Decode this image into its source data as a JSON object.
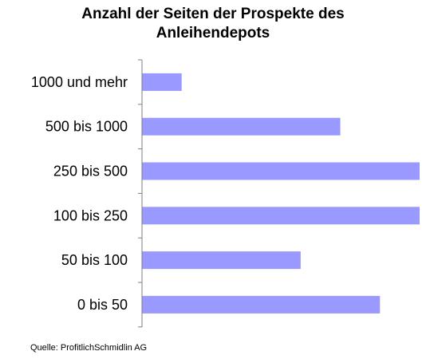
{
  "title_lines": [
    "Anzahl der Seiten der Prospekte des",
    "Anleihendepots"
  ],
  "source": "Quelle: ProfitlichSchmidlin AG",
  "colors": {
    "bar": "#9999ff",
    "axis": "#7f7f7f",
    "text": "#000000"
  },
  "chart_data": {
    "type": "bar",
    "orientation": "horizontal",
    "title": "Anzahl der Seiten der Prospekte des Anleihendepots",
    "categories": [
      "1000 und mehr",
      "500 bis 1000",
      "250 bis 500",
      "100 bis 250",
      "50 bis 100",
      "0 bis 50"
    ],
    "values": [
      1,
      5,
      7,
      7,
      4,
      6
    ],
    "xlim": [
      0,
      7
    ],
    "xlabel": "",
    "ylabel": "",
    "grid": false,
    "legend": "none"
  }
}
